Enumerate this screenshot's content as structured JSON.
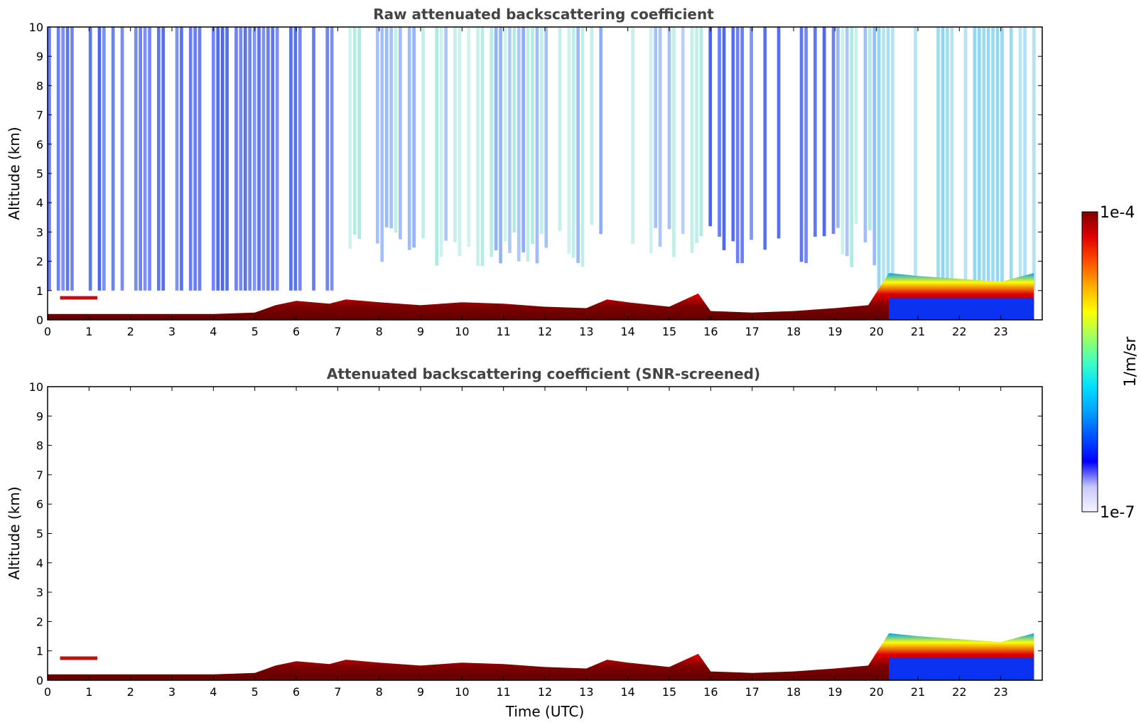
{
  "chart_data": [
    {
      "type": "heatmap",
      "title": "Raw attenuated backscattering coefficient",
      "xlabel": "",
      "ylabel": "Altitude (km)",
      "xlim": [
        0,
        24
      ],
      "ylim": [
        0,
        10
      ],
      "xticks": [
        "0",
        "1",
        "2",
        "3",
        "4",
        "5",
        "6",
        "7",
        "8",
        "9",
        "10",
        "11",
        "12",
        "13",
        "14",
        "15",
        "16",
        "17",
        "18",
        "19",
        "20",
        "21",
        "22",
        "23"
      ],
      "yticks": [
        "0",
        "1",
        "2",
        "3",
        "4",
        "5",
        "6",
        "7",
        "8",
        "9",
        "10"
      ],
      "boundary_layer_top_km": [
        [
          0,
          0.2
        ],
        [
          2,
          0.2
        ],
        [
          4,
          0.2
        ],
        [
          5,
          0.25
        ],
        [
          5.5,
          0.5
        ],
        [
          6,
          0.65
        ],
        [
          6.8,
          0.55
        ],
        [
          7.2,
          0.7
        ],
        [
          8,
          0.6
        ],
        [
          9,
          0.5
        ],
        [
          10,
          0.6
        ],
        [
          11,
          0.55
        ],
        [
          12,
          0.45
        ],
        [
          13,
          0.4
        ],
        [
          13.5,
          0.7
        ],
        [
          14,
          0.6
        ],
        [
          15,
          0.45
        ],
        [
          15.7,
          0.9
        ],
        [
          16,
          0.3
        ],
        [
          17,
          0.25
        ],
        [
          18,
          0.3
        ],
        [
          19,
          0.4
        ],
        [
          19.8,
          0.5
        ],
        [
          20.3,
          1.6
        ],
        [
          21,
          1.5
        ],
        [
          22,
          1.4
        ],
        [
          23,
          1.3
        ],
        [
          23.8,
          1.6
        ]
      ],
      "elevated_layer": {
        "x_range": [
          0.3,
          1.2
        ],
        "altitude_km": 0.75
      },
      "noise_columns_note": "vertical streaks of background noise above boundary layer"
    },
    {
      "type": "heatmap",
      "title": "Attenuated backscattering coefficient (SNR-screened)",
      "xlabel": "Time (UTC)",
      "ylabel": "Altitude (km)",
      "xlim": [
        0,
        24
      ],
      "ylim": [
        0,
        10
      ],
      "xticks": [
        "0",
        "1",
        "2",
        "3",
        "4",
        "5",
        "6",
        "7",
        "8",
        "9",
        "10",
        "11",
        "12",
        "13",
        "14",
        "15",
        "16",
        "17",
        "18",
        "19",
        "20",
        "21",
        "22",
        "23"
      ],
      "yticks": [
        "0",
        "1",
        "2",
        "3",
        "4",
        "5",
        "6",
        "7",
        "8",
        "9",
        "10"
      ],
      "boundary_layer_top_km": [
        [
          0,
          0.2
        ],
        [
          2,
          0.2
        ],
        [
          4,
          0.2
        ],
        [
          5,
          0.25
        ],
        [
          5.5,
          0.5
        ],
        [
          6,
          0.65
        ],
        [
          6.8,
          0.55
        ],
        [
          7.2,
          0.7
        ],
        [
          8,
          0.6
        ],
        [
          9,
          0.5
        ],
        [
          10,
          0.6
        ],
        [
          11,
          0.55
        ],
        [
          12,
          0.45
        ],
        [
          13,
          0.4
        ],
        [
          13.5,
          0.7
        ],
        [
          14,
          0.6
        ],
        [
          15,
          0.45
        ],
        [
          15.7,
          0.9
        ],
        [
          16,
          0.3
        ],
        [
          17,
          0.25
        ],
        [
          18,
          0.3
        ],
        [
          19,
          0.4
        ],
        [
          19.8,
          0.5
        ],
        [
          20.3,
          1.6
        ],
        [
          21,
          1.5
        ],
        [
          22,
          1.4
        ],
        [
          23,
          1.3
        ],
        [
          23.8,
          1.6
        ]
      ],
      "elevated_layer": {
        "x_range": [
          0.3,
          1.2
        ],
        "altitude_km": 0.75
      }
    }
  ],
  "colorbar": {
    "label": "1/m/sr",
    "max_label": "1e-4",
    "min_label": "1e-7",
    "scale": "log",
    "colors": [
      "#f4f4ff",
      "#c8c8ff",
      "#0000ff",
      "#0050ff",
      "#00a0ff",
      "#00e0ff",
      "#40ffc0",
      "#a0ff60",
      "#ffff00",
      "#ffb000",
      "#ff5000",
      "#e00000",
      "#800000"
    ]
  }
}
